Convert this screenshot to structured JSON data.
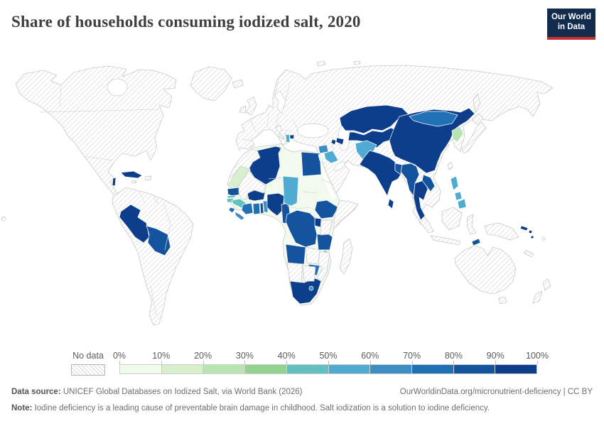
{
  "header": {
    "title": "Share of households consuming iodized salt, 2020",
    "logo": {
      "line1": "Our World",
      "line2": "in Data"
    },
    "logo_bg": "#132c4d",
    "logo_accent": "#c5302e"
  },
  "legend": {
    "no_data_label": "No data",
    "ticks": [
      "0%",
      "10%",
      "20%",
      "30%",
      "40%",
      "50%",
      "60%",
      "70%",
      "80%",
      "90%",
      "100%"
    ],
    "bucket_labels": [
      "0-10%",
      "10-20%",
      "20-30%",
      "30-40%",
      "40-50%",
      "50-60%",
      "60-70%",
      "70-80%",
      "80-90%",
      "90-100%"
    ],
    "colors": [
      "#f2faee",
      "#d8efcd",
      "#b9e3b2",
      "#93d390",
      "#62c1be",
      "#50abd2",
      "#3d8fc3",
      "#1f70b5",
      "#14539e",
      "#0d3e8b"
    ]
  },
  "footer": {
    "source_label": "Data source:",
    "source_text": " UNICEF Global Databases on Iodized Salt, via World Bank (2026)",
    "link_text": "OurWorldinData.org/micronutrient-deficiency",
    "separator": " | ",
    "license_text": "CC BY",
    "note_label": "Note:",
    "note_text": " Iodine deficiency is a leading cause of preventable brain damage in childhood. Salt iodization is a solution to iodine deficiency."
  },
  "chart_data": {
    "type": "heatmap",
    "subtype": "choropleth_world_map",
    "title": "Share of households consuming iodized salt, 2020",
    "unit": "% of households",
    "legend_ticks": [
      "0%",
      "10%",
      "20%",
      "30%",
      "40%",
      "50%",
      "60%",
      "70%",
      "80%",
      "90%",
      "100%"
    ],
    "bucket_colors": {
      "0-10%": "#f2faee",
      "10-20%": "#d8efcd",
      "20-30%": "#b9e3b2",
      "30-40%": "#93d390",
      "40-50%": "#62c1be",
      "50-60%": "#50abd2",
      "60-70%": "#3d8fc3",
      "70-80%": "#1f70b5",
      "80-90%": "#14539e",
      "90-100%": "#0d3e8b",
      "no-data": "hatched"
    },
    "countries": {
      "Peru": "90-100%",
      "Cuba": "90-100%",
      "Belize": "90-100%",
      "Algeria": "90-100%",
      "Burkina Faso": "90-100%",
      "Nigeria": "90-100%",
      "Uganda": "90-100%",
      "South Africa": "90-100%",
      "North Macedonia": "90-100%",
      "Azerbaijan": "90-100%",
      "Armenia": "90-100%",
      "Kazakhstan": "90-100%",
      "Uzbekistan": "90-100%",
      "Turkmenistan": "90-100%",
      "Tajikistan": "90-100%",
      "Kyrgyzstan": "90-100%",
      "China": "90-100%",
      "India": "90-100%",
      "Nepal": "90-100%",
      "Sri Lanka": "90-100%",
      "Thailand": "90-100%",
      "Solomon Islands": "90-100%",
      "Vanuatu": "90-100%",
      "Bolivia": "80-90%",
      "Egypt": "80-90%",
      "Ethiopia": "80-90%",
      "Democratic Republic of Congo": "80-90%",
      "Angola": "80-90%",
      "Tanzania": "80-90%",
      "Cameroon": "80-90%",
      "Senegal": "80-90%",
      "Togo": "80-90%",
      "Myanmar": "80-90%",
      "Laos": "80-90%",
      "Bangladesh": "80-90%",
      "Timor-Leste": "80-90%",
      "Mongolia": "70-80%",
      "Ghana": "70-80%",
      "Cote d'Ivoire": "70-80%",
      "Zimbabwe": "70-80%",
      "Sierra Leone": "70-80%",
      "Syria": "60-70%",
      "Liberia": "60-70%",
      "Benin": "60-70%",
      "Lesotho": "60-70%",
      "Afghanistan": "50-60%",
      "Iraq": "50-60%",
      "Chad": "50-60%",
      "Philippines": "50-60%",
      "Albania": "50-60%",
      "Guinea": "40-50%",
      "Gambia": "40-50%",
      "Guinea-Bissau": "40-50%",
      "Malawi": "40-50%",
      "North Korea": "20-30%",
      "Mauritania": "10-20%",
      "Libya": "0-10%",
      "Tunisia": "0-10%",
      "Niger": "0-10%",
      "Sudan": "0-10%",
      "South Sudan": "0-10%",
      "Central African Republic": "0-10%",
      "Eritrea": "0-10%",
      "Djibouti": "0-10%",
      "Jordan": "0-10%",
      "Georgia": "0-10%",
      "Gabon": "0-10%",
      "Republic of Congo": "0-10%",
      "Morocco": "no-data",
      "Mali": "no-data",
      "Kenya": "no-data",
      "Somalia": "no-data",
      "Zambia": "no-data",
      "Mozambique": "no-data",
      "Namibia": "no-data",
      "Botswana": "no-data",
      "Madagascar": "no-data",
      "Japan": "no-data",
      "South Korea": "no-data",
      "Indonesia": "no-data",
      "Papua New Guinea": "no-data",
      "Australia": "no-data",
      "New Zealand": "no-data",
      "Fiji": "no-data",
      "New Caledonia": "no-data",
      "Taiwan": "no-data",
      "Haiti": "no-data",
      "Jamaica": "no-data",
      "United States": "no-data",
      "Canada": "no-data",
      "Mexico": "no-data",
      "Greenland": "no-data",
      "Brazil": "no-data",
      "Argentina": "no-data",
      "Chile": "no-data",
      "Colombia": "no-data",
      "Venezuela": "no-data",
      "Russia": "no-data",
      "Turkey": "no-data",
      "Iran": "no-data",
      "Saudi Arabia": "no-data",
      "Pakistan": "no-data",
      "Vietnam": "no-data",
      "Cambodia": "no-data",
      "Malaysia": "no-data",
      "United Kingdom": "no-data",
      "Ireland": "no-data",
      "Iceland": "no-data"
    },
    "layout": {
      "legend_position": "bottom",
      "no_data_pattern": "diagonal-hatch",
      "ocean_color": "#ffffff"
    }
  }
}
